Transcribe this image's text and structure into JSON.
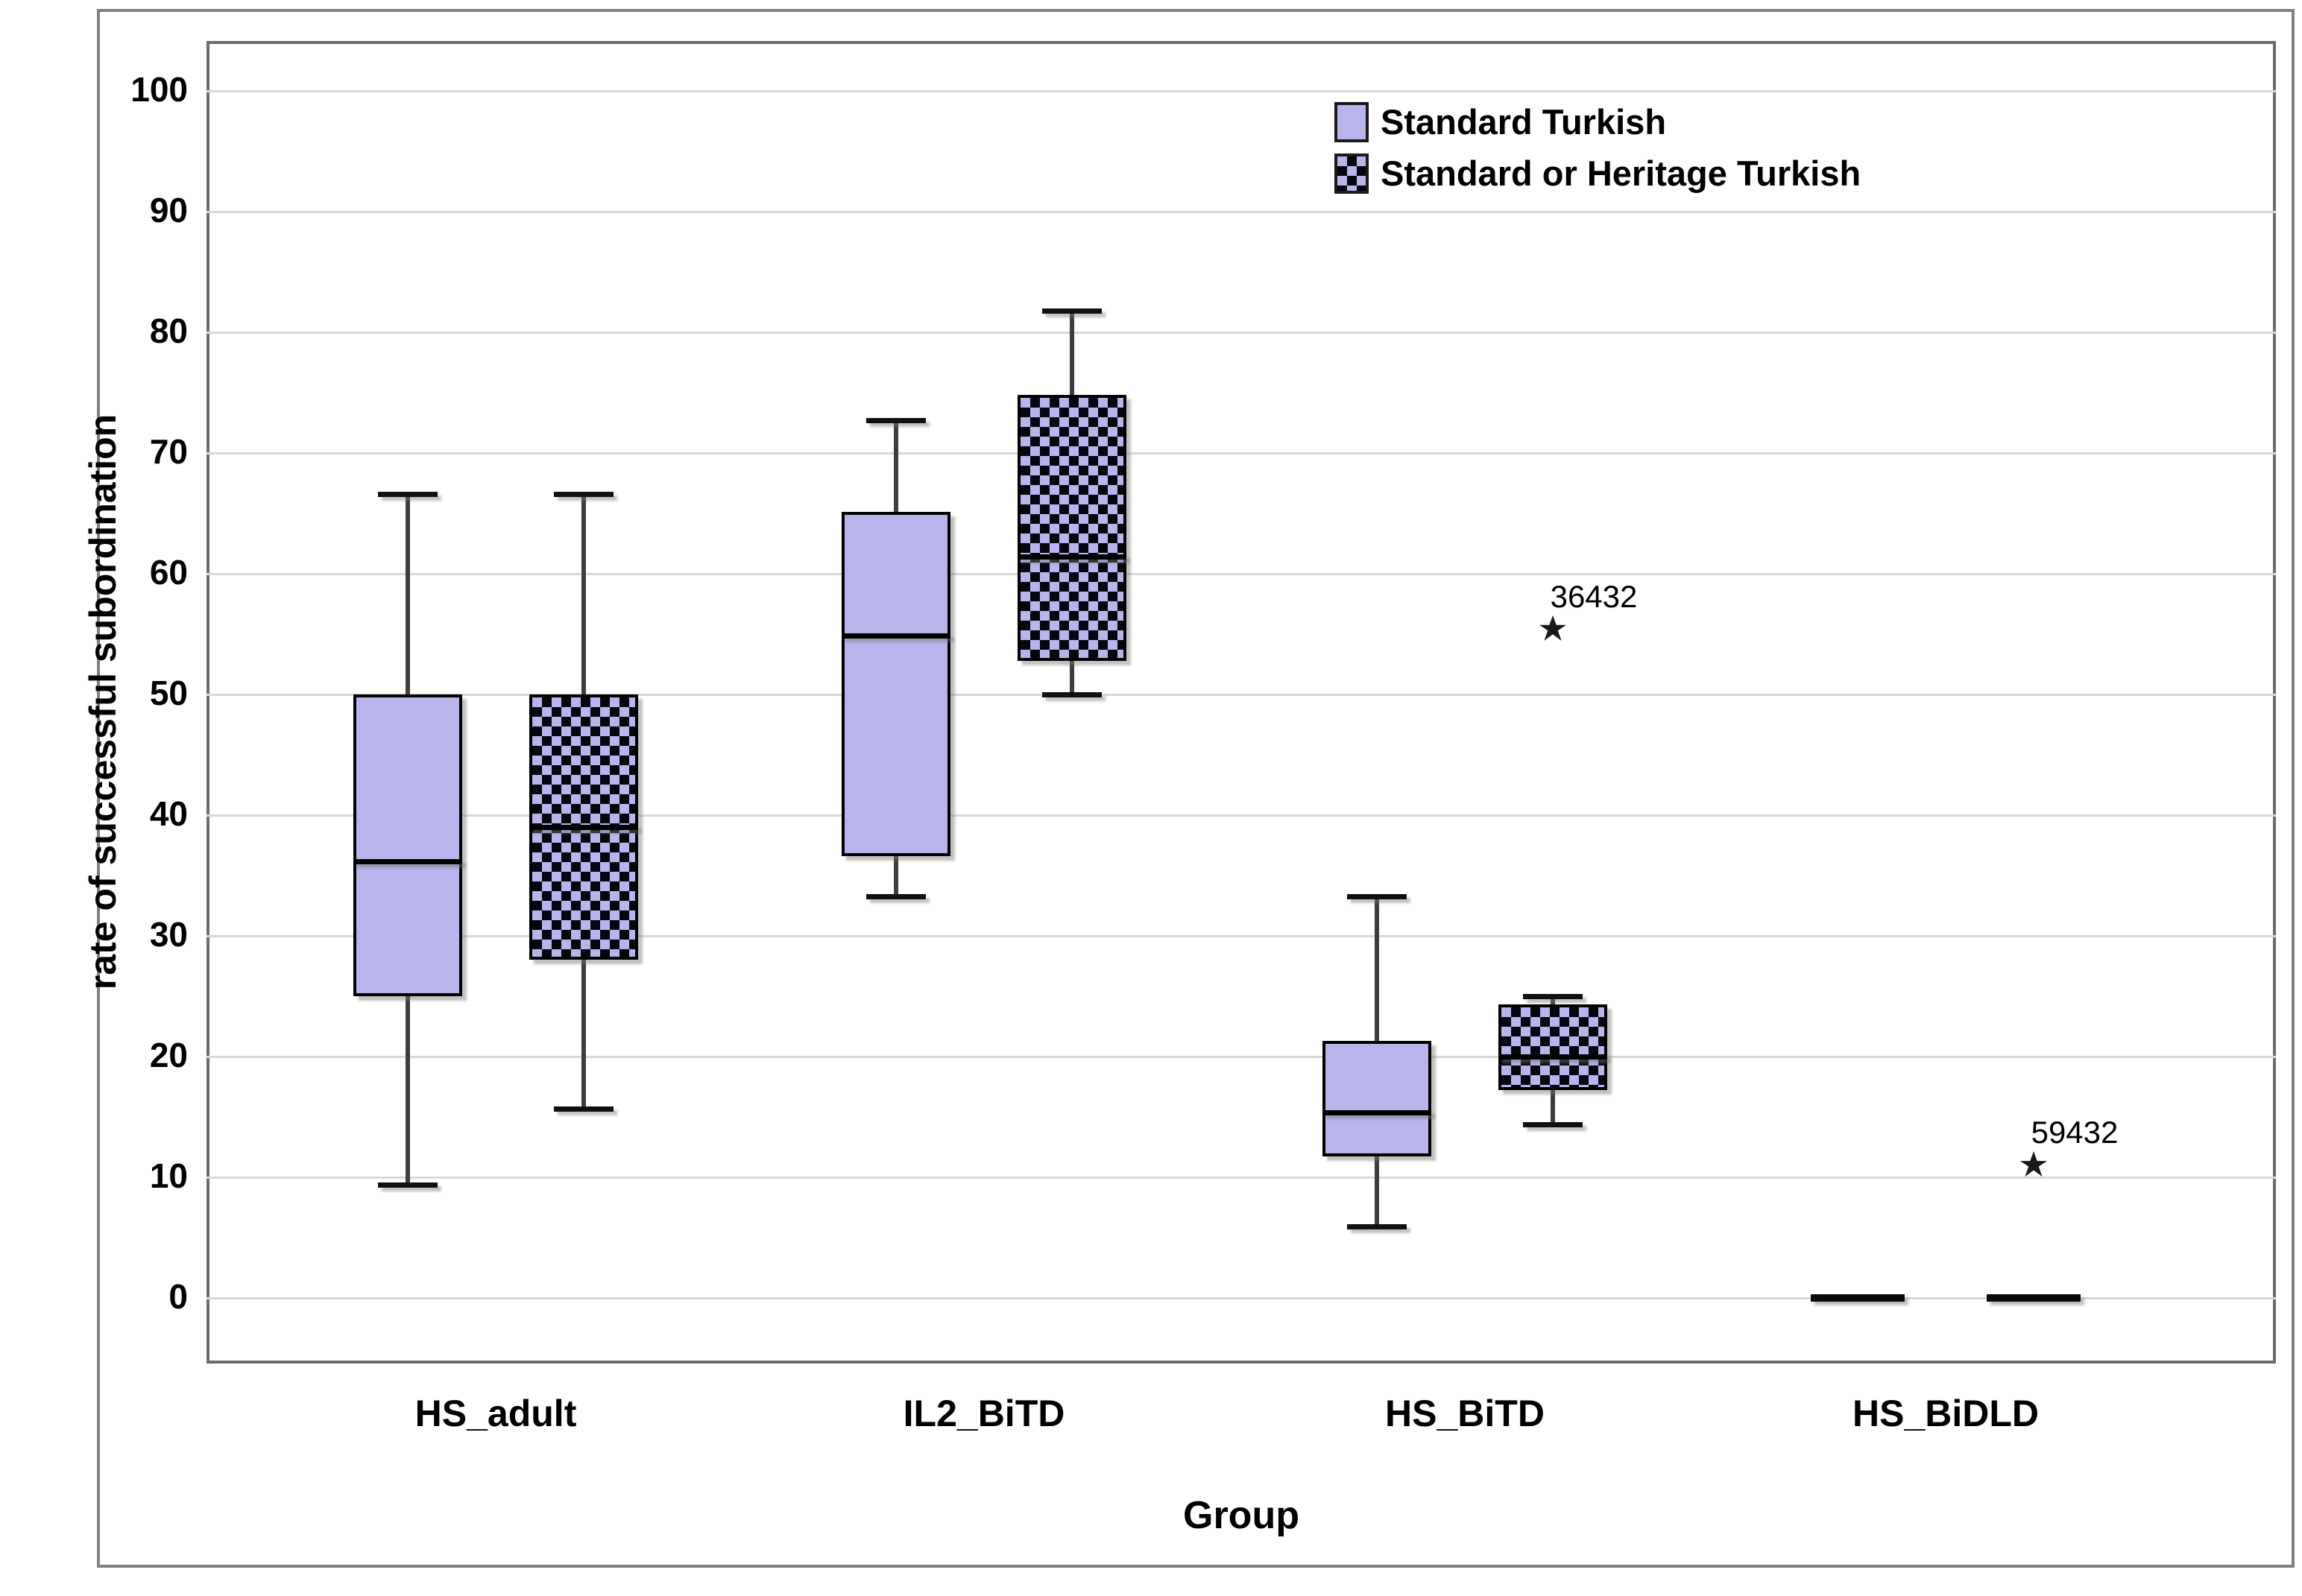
{
  "chart_data": {
    "type": "boxplot",
    "title": "",
    "xlabel": "Group",
    "ylabel": "rate of successful subordination",
    "ylim": [
      0,
      100
    ],
    "yticks": [
      0,
      10,
      20,
      30,
      40,
      50,
      60,
      70,
      80,
      90,
      100
    ],
    "grid": "horizontal",
    "legend_position": "top-right-inside",
    "categories": [
      "HS_adult",
      "IL2_BiTD",
      "HS_BiTD",
      "HS_BiDLD"
    ],
    "series": [
      {
        "name": "Standard Turkish",
        "style": "solid",
        "fill_color": "#b8b5ec",
        "boxes": [
          {
            "min": 9.4,
            "q1": 25.0,
            "median": 36.2,
            "q3": 50.0,
            "max": 66.6
          },
          {
            "min": 33.3,
            "q1": 36.6,
            "median": 54.9,
            "q3": 65.1,
            "max": 72.7
          },
          {
            "min": 5.9,
            "q1": 11.7,
            "median": 15.4,
            "q3": 21.3,
            "max": 33.3
          },
          {
            "min": 0,
            "q1": 0,
            "median": 0,
            "q3": 0,
            "max": 0,
            "flat": true
          }
        ]
      },
      {
        "name": "Standard or Heritage Turkish",
        "style": "checkered",
        "fill_color": "#b8b5ec",
        "pattern_color": "#000000",
        "boxes": [
          {
            "min": 15.7,
            "q1": 28.0,
            "median": 39.0,
            "q3": 50.0,
            "max": 66.6
          },
          {
            "min": 50.0,
            "q1": 52.8,
            "median": 61.4,
            "q3": 74.8,
            "max": 81.8
          },
          {
            "min": 14.4,
            "q1": 17.2,
            "median": 20.0,
            "q3": 24.3,
            "max": 25.0
          },
          {
            "min": 0,
            "q1": 0,
            "median": 0,
            "q3": 0,
            "max": 0,
            "flat": true
          }
        ]
      }
    ],
    "outliers": [
      {
        "series_index": 1,
        "category": "HS_BiTD",
        "label": "36432",
        "value": 55.5
      },
      {
        "series_index": 1,
        "category": "HS_BiDLD",
        "label": "59432",
        "value": 11.1
      }
    ],
    "colors": {
      "box_fill": "#b8b5ec",
      "pattern": "#000000",
      "whisker": "#3d3d3d",
      "gridline": "#d8d8d8",
      "frame": "#686d66",
      "text": "#000000"
    }
  }
}
